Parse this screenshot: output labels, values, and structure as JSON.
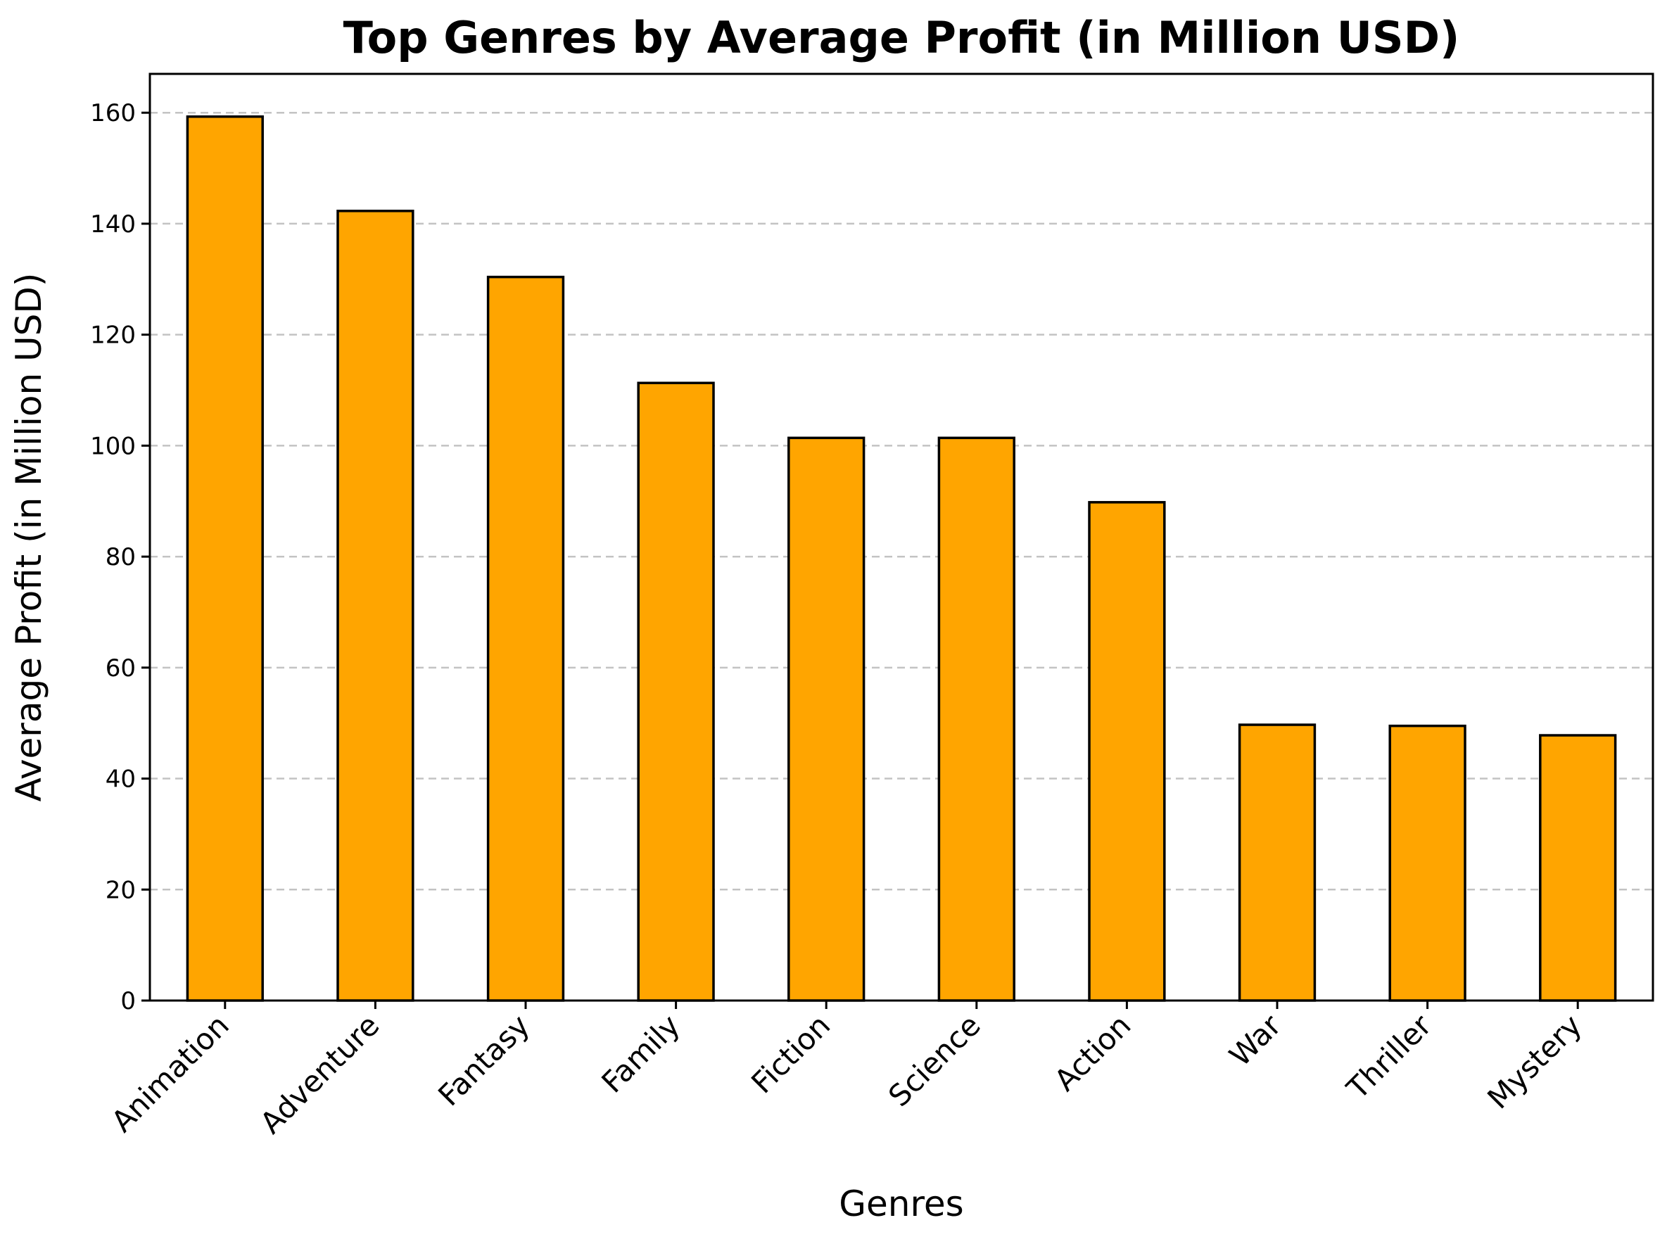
{
  "chart_data": {
    "type": "bar",
    "title": "Top Genres by Average Profit (in Million USD)",
    "xlabel": "Genres",
    "ylabel": "Average Profit (in Million USD)",
    "categories": [
      "Animation",
      "Adventure",
      "Fantasy",
      "Family",
      "Fiction",
      "Science",
      "Action",
      "War",
      "Thriller",
      "Mystery"
    ],
    "values": [
      159.3,
      142.3,
      130.4,
      111.3,
      101.4,
      101.4,
      89.8,
      49.7,
      49.5,
      47.8
    ],
    "ylim": [
      0,
      167
    ],
    "yticks": [
      0,
      20,
      40,
      60,
      80,
      100,
      120,
      140,
      160
    ],
    "grid": "y-dashed",
    "bar_color": "#FFA500",
    "edge_color": "#000000"
  }
}
